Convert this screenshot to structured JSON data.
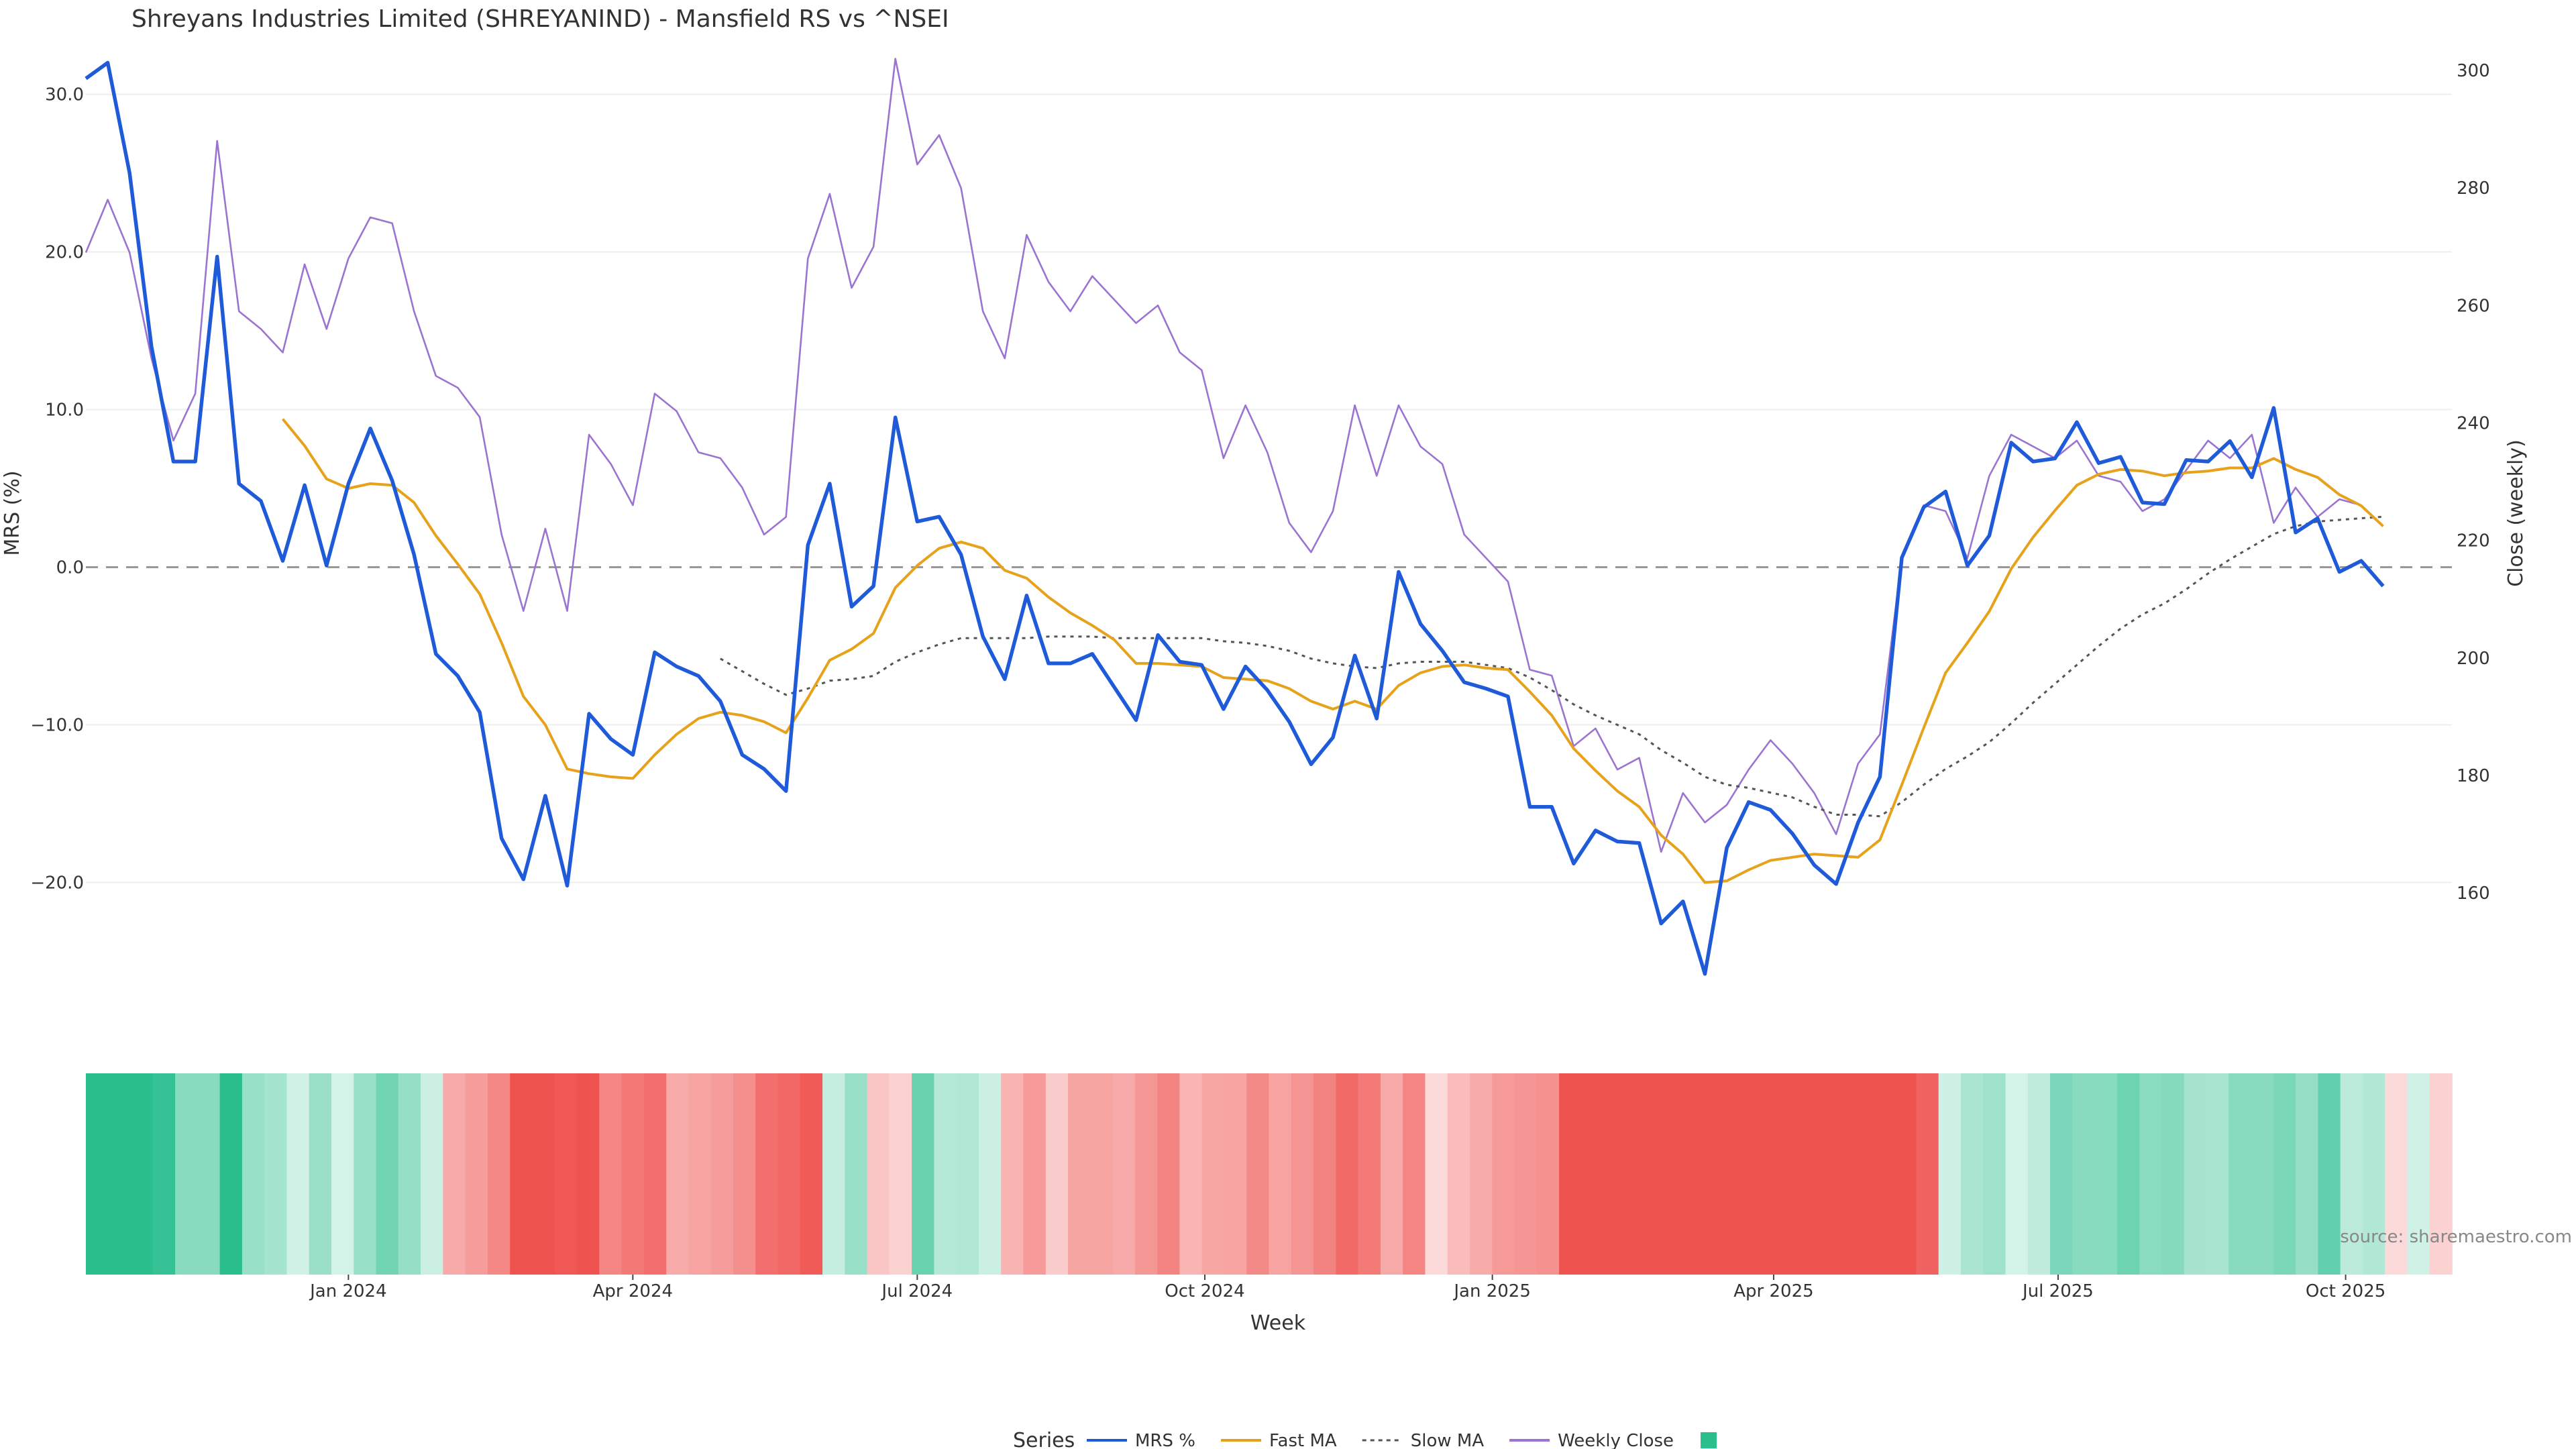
{
  "chart_data": {
    "type": "line",
    "title": "Shreyans Industries Limited (SHREYANIND) - Mansfield RS vs ^NSEI",
    "xlabel": "Week",
    "ylabel_left": "MRS (%)",
    "ylabel_right": "Close (weekly)",
    "x_start": "2023-10-09",
    "x_step_days": 7,
    "x_ticks": [
      "Jan 2024",
      "Apr 2024",
      "Jul 2024",
      "Oct 2024",
      "Jan 2025",
      "Apr 2025",
      "Jul 2025",
      "Oct 2025"
    ],
    "y_left_ticks": [
      "30.0",
      "20.0",
      "10.0",
      "0.0",
      "−10.0",
      "−20.0"
    ],
    "y_left_range": [
      -27,
      33
    ],
    "y_right_ticks": [
      "300",
      "280",
      "260",
      "240",
      "220",
      "200",
      "180",
      "160"
    ],
    "y_right_range": [
      143,
      304
    ],
    "grid": true,
    "zero_line": true,
    "legend_title": "Series",
    "legend_position": "bottom",
    "series": [
      {
        "name": "MRS %",
        "axis": "left",
        "color": "#1f5bd8",
        "style": "solid",
        "values": [
          31,
          32,
          25,
          14,
          6.7,
          6.7,
          19.7,
          5.3,
          4.2,
          0.4,
          5.2,
          0.1,
          5.3,
          8.8,
          5.5,
          0.8,
          -5.5,
          -6.9,
          -9.2,
          -17.2,
          -19.8,
          -14.5,
          -20.2,
          -9.3,
          -10.9,
          -11.9,
          -5.4,
          -6.3,
          -6.9,
          -8.5,
          -11.9,
          -12.8,
          -14.2,
          1.4,
          5.3,
          -2.5,
          -1.2,
          9.5,
          2.9,
          3.2,
          0.8,
          -4.4,
          -7.1,
          -1.8,
          -6.1,
          -6.1,
          -5.5,
          -7.6,
          -9.7,
          -4.3,
          -6,
          -6.2,
          -9,
          -6.3,
          -7.8,
          -9.8,
          -12.5,
          -10.8,
          -5.6,
          -9.6,
          -0.3,
          -3.6,
          -5.3,
          -7.3,
          -7.7,
          -8.2,
          -15.2,
          -15.2,
          -18.8,
          -16.7,
          -17.4,
          -17.5,
          -22.6,
          -21.2,
          -25.8,
          -17.8,
          -14.9,
          -15.4,
          -16.9,
          -18.9,
          -20.1,
          -16.2,
          -13.3,
          0.6,
          3.8,
          4.8,
          0.1,
          2,
          7.9,
          6.7,
          6.9,
          9.2,
          6.6,
          7,
          4.1,
          4,
          6.8,
          6.7,
          8,
          5.7,
          10.1,
          2.2,
          3.1,
          -0.3,
          0.4,
          -1.2
        ]
      },
      {
        "name": "Fast MA",
        "axis": "left",
        "color": "#e6a21a",
        "style": "solid",
        "values": [
          null,
          null,
          null,
          null,
          null,
          null,
          null,
          null,
          null,
          9.4,
          7.7,
          5.6,
          5,
          5.3,
          5.2,
          4.1,
          2,
          0.2,
          -1.7,
          -4.8,
          -8.2,
          -10,
          -12.8,
          -13.1,
          -13.3,
          -13.4,
          -11.9,
          -10.6,
          -9.6,
          -9.2,
          -9.4,
          -9.8,
          -10.5,
          -8.3,
          -5.9,
          -5.2,
          -4.2,
          -1.3,
          0.1,
          1.2,
          1.6,
          1.2,
          -0.2,
          -0.7,
          -1.9,
          -2.9,
          -3.7,
          -4.6,
          -6.1,
          -6.1,
          -6.2,
          -6.3,
          -7,
          -7.1,
          -7.2,
          -7.7,
          -8.5,
          -9,
          -8.5,
          -9,
          -7.5,
          -6.7,
          -6.3,
          -6.2,
          -6.4,
          -6.5,
          -7.9,
          -9.4,
          -11.5,
          -12.9,
          -14.2,
          -15.2,
          -17,
          -18.2,
          -20,
          -19.9,
          -19.2,
          -18.6,
          -18.4,
          -18.2,
          -18.3,
          -18.4,
          -17.3,
          -13.8,
          -10.2,
          -6.7,
          -4.8,
          -2.8,
          -0.1,
          1.9,
          3.6,
          5.2,
          5.9,
          6.2,
          6.1,
          5.8,
          6,
          6.1,
          6.3,
          6.3,
          6.9,
          6.2,
          5.7,
          4.6,
          3.9,
          2.6
        ]
      },
      {
        "name": "Slow MA",
        "axis": "left",
        "color": "#555555",
        "style": "dotted",
        "values": [
          null,
          null,
          null,
          null,
          null,
          null,
          null,
          null,
          null,
          null,
          null,
          null,
          null,
          null,
          null,
          null,
          null,
          null,
          null,
          null,
          null,
          null,
          null,
          null,
          null,
          null,
          null,
          null,
          null,
          -5.8,
          -6.6,
          -7.4,
          -8.1,
          -7.7,
          -7.2,
          -7.1,
          -6.9,
          -6,
          -5.4,
          -4.9,
          -4.5,
          -4.5,
          -4.5,
          -4.5,
          -4.4,
          -4.4,
          -4.4,
          -4.5,
          -4.5,
          -4.5,
          -4.5,
          -4.5,
          -4.7,
          -4.8,
          -5,
          -5.3,
          -5.8,
          -6.1,
          -6.3,
          -6.4,
          -6.1,
          -6,
          -6,
          -6,
          -6.2,
          -6.4,
          -7,
          -7.8,
          -8.7,
          -9.4,
          -10,
          -10.6,
          -11.6,
          -12.4,
          -13.3,
          -13.8,
          -14,
          -14.3,
          -14.6,
          -15.2,
          -15.7,
          -15.7,
          -15.8,
          -14.9,
          -13.8,
          -12.8,
          -12,
          -11.1,
          -9.9,
          -8.6,
          -7.4,
          -6.2,
          -5,
          -3.9,
          -3,
          -2.3,
          -1.4,
          -0.4,
          0.5,
          1.3,
          2.1,
          2.6,
          2.9,
          3,
          3.1,
          3.2
        ]
      },
      {
        "name": "Weekly Close",
        "axis": "right",
        "color": "#9a74d0",
        "style": "solid",
        "values": [
          269,
          278,
          269,
          251,
          237,
          245,
          288,
          259,
          256,
          252,
          267,
          256,
          268,
          275,
          274,
          259,
          248,
          246,
          241,
          221,
          208,
          222,
          208,
          238,
          233,
          226,
          245,
          242,
          235,
          234,
          229,
          221,
          224,
          268,
          279,
          263,
          270,
          302,
          284,
          289,
          280,
          259,
          251,
          272,
          264,
          259,
          265,
          261,
          257,
          260,
          252,
          249,
          234,
          243,
          235,
          223,
          218,
          225,
          243,
          231,
          243,
          236,
          233,
          221,
          217,
          213,
          198,
          197,
          185,
          188,
          181,
          183,
          167,
          177,
          172,
          175,
          181,
          186,
          182,
          177,
          170,
          182,
          187,
          217,
          226,
          225,
          217,
          231,
          238,
          236,
          234,
          237,
          231,
          230,
          225,
          227,
          232,
          237,
          234,
          238,
          223,
          229,
          224,
          227,
          226
        ]
      }
    ],
    "strip": {
      "values": [
        31,
        32,
        25,
        14,
        6.7,
        6.7,
        19.7,
        5.3,
        4.2,
        0.4,
        5.2,
        0.1,
        5.3,
        8.8,
        5.5,
        0.8,
        -5.5,
        -6.9,
        -9.2,
        -17.2,
        -19.8,
        -14.5,
        -20.2,
        -9.3,
        -10.9,
        -11.9,
        -5.4,
        -6.3,
        -6.9,
        -8.5,
        -11.9,
        -12.8,
        -14.2,
        1.4,
        5.3,
        -2.5,
        -1.2,
        9.5,
        2.9,
        3.2,
        0.8,
        -4.4,
        -7.1,
        -1.8,
        -6.1,
        -6.1,
        -5.5,
        -7.6,
        -9.7,
        -4.3,
        -6,
        -6.2,
        -9,
        -6.3,
        -7.8,
        -9.8,
        -12.5,
        -10.8,
        -5.6,
        -9.6,
        -0.3,
        -3.6,
        -5.3,
        -7.3,
        -7.7,
        -8.2,
        -15.2,
        -15.2,
        -18.8,
        -16.7,
        -17.4,
        -17.5,
        -22.6,
        -21.2,
        -25.8,
        -17.8,
        -14.9,
        -15.4,
        -16.9,
        -18.9,
        -20.1,
        -16.2,
        -13.3,
        0.6,
        3.8,
        4.8,
        0.1,
        2,
        7.9,
        6.7,
        6.9,
        9.2,
        6.6,
        7,
        4.1,
        4,
        6.8,
        6.7,
        8,
        5.7,
        10.1,
        2.2,
        3.1,
        -0.3,
        0.4,
        -1.2
      ],
      "positive_color": "#2bbf8e",
      "negative_color": "#ef5350"
    },
    "source": "source: sharemaestro.com"
  }
}
